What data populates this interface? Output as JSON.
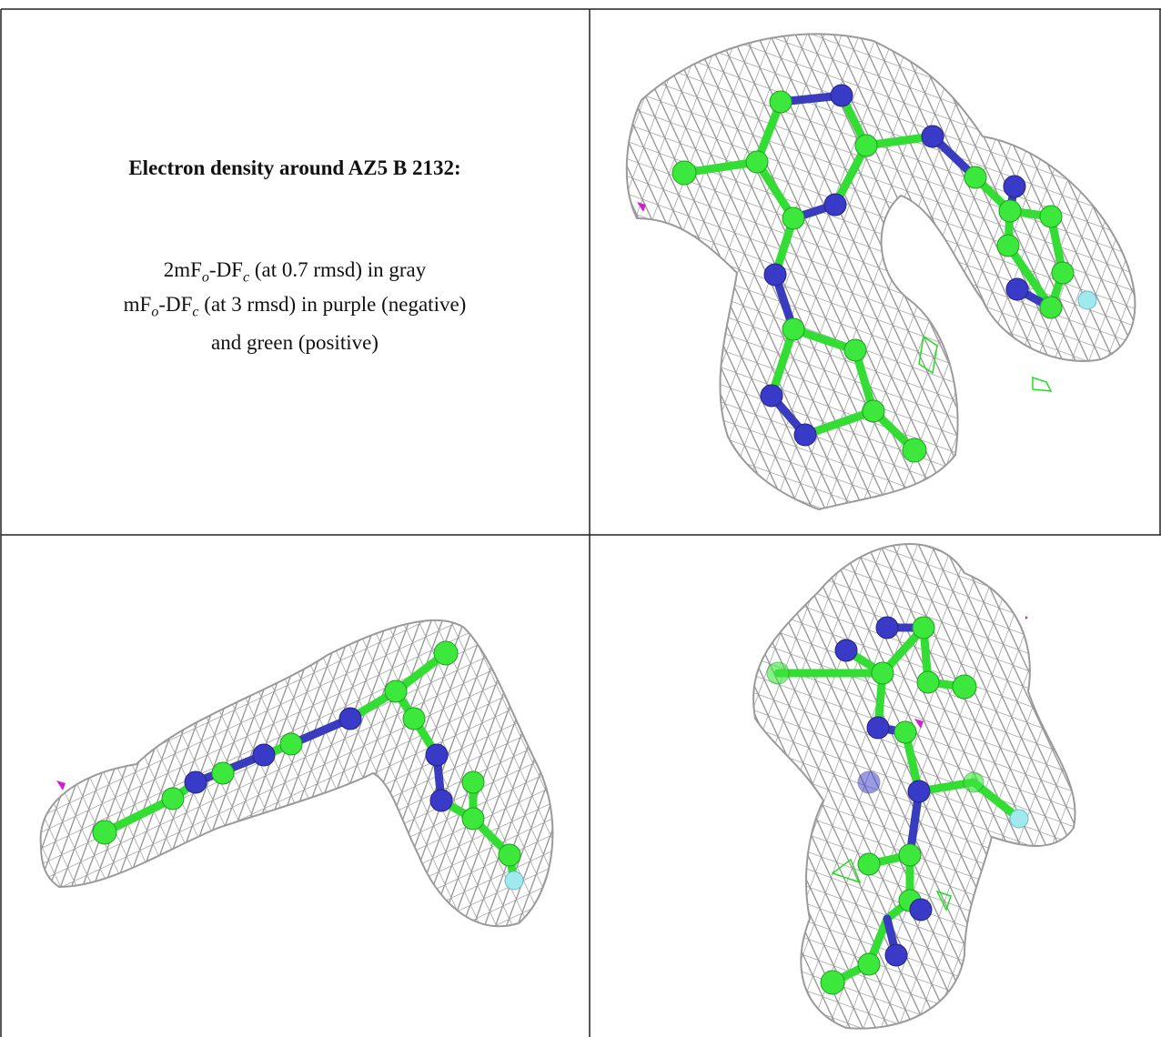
{
  "title": "Electron density around AZ5 B 2132:",
  "legend": [
    [
      "2mF",
      "o",
      "-DF",
      "c",
      " (at 0.7 rmsd) in gray"
    ],
    [
      "mF",
      "o",
      "-DF",
      "c",
      " (at 3 rmsd) in purple (negative)"
    ],
    [
      "and green (positive)"
    ]
  ]
}
